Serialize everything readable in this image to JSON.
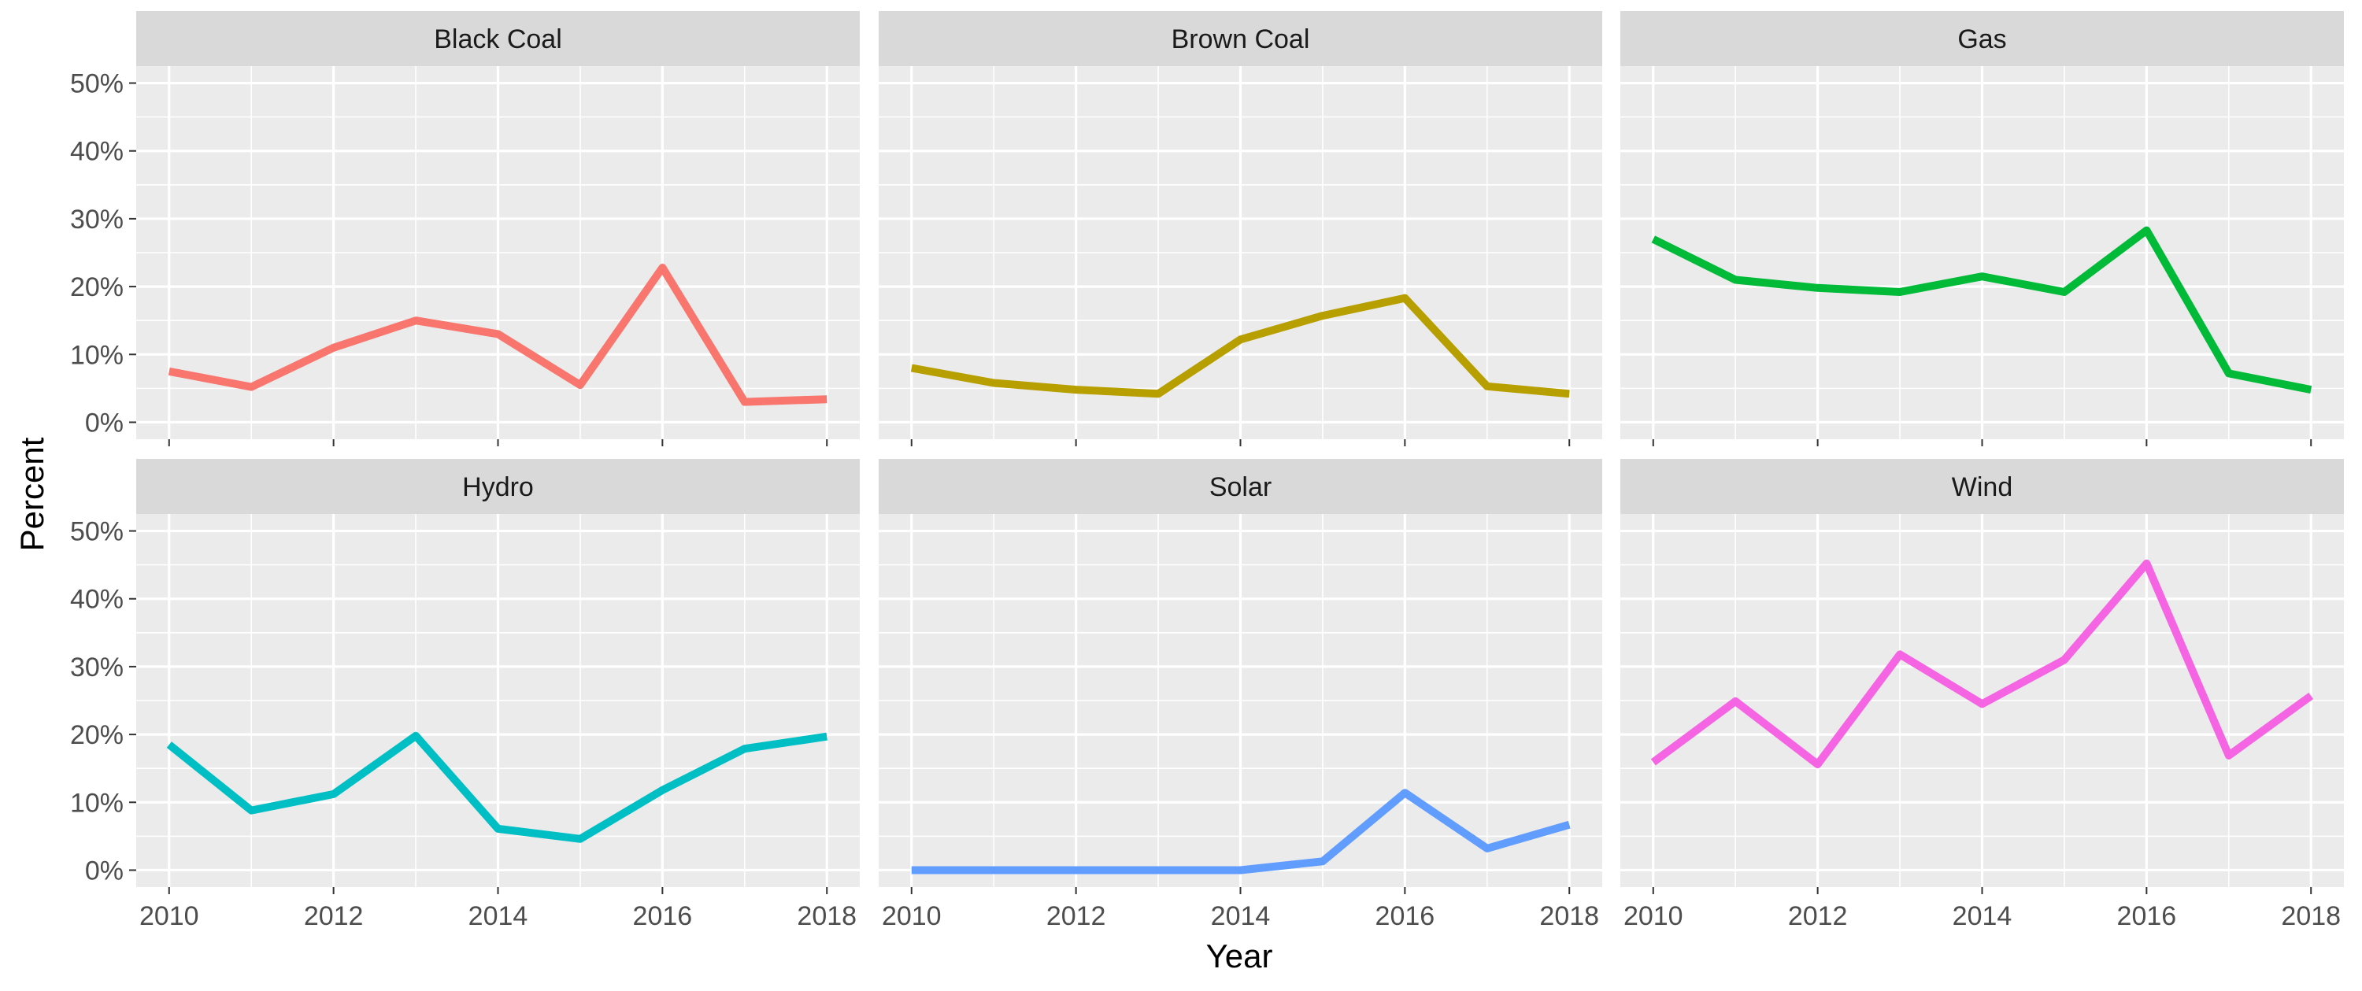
{
  "chart_data": {
    "type": "line",
    "xlabel": "Year",
    "ylabel": "Percent",
    "x": [
      2010,
      2011,
      2012,
      2013,
      2014,
      2015,
      2016,
      2017,
      2018
    ],
    "x_ticks": [
      "2010",
      "2012",
      "2014",
      "2016",
      "2018"
    ],
    "xlim": [
      2009.6,
      2018.4
    ],
    "ylim": [
      -2.5,
      52.5
    ],
    "y_ticks": [
      "0%",
      "10%",
      "20%",
      "30%",
      "40%",
      "50%"
    ],
    "grid": true,
    "facets": [
      {
        "name": "Black Coal",
        "color": "#F8766D",
        "values": [
          7.5,
          5.2,
          11.0,
          15.0,
          13.0,
          5.5,
          22.8,
          3.0,
          3.4
        ]
      },
      {
        "name": "Brown Coal",
        "color": "#B79F00",
        "values": [
          8.0,
          5.8,
          4.8,
          4.2,
          12.2,
          15.7,
          18.3,
          5.3,
          4.2
        ]
      },
      {
        "name": "Gas",
        "color": "#00BA38",
        "values": [
          27.0,
          21.0,
          19.8,
          19.2,
          21.5,
          19.2,
          28.3,
          7.2,
          4.8
        ]
      },
      {
        "name": "Hydro",
        "color": "#00BFC4",
        "values": [
          18.5,
          8.8,
          11.2,
          19.8,
          6.1,
          4.6,
          11.8,
          17.9,
          19.7
        ]
      },
      {
        "name": "Solar",
        "color": "#619CFF",
        "values": [
          0.0,
          0.0,
          0.0,
          0.0,
          0.0,
          1.3,
          11.4,
          3.2,
          6.7
        ]
      },
      {
        "name": "Wind",
        "color": "#F564E3",
        "values": [
          15.9,
          24.9,
          15.6,
          31.8,
          24.5,
          31.0,
          45.2,
          16.9,
          25.7
        ]
      }
    ]
  }
}
